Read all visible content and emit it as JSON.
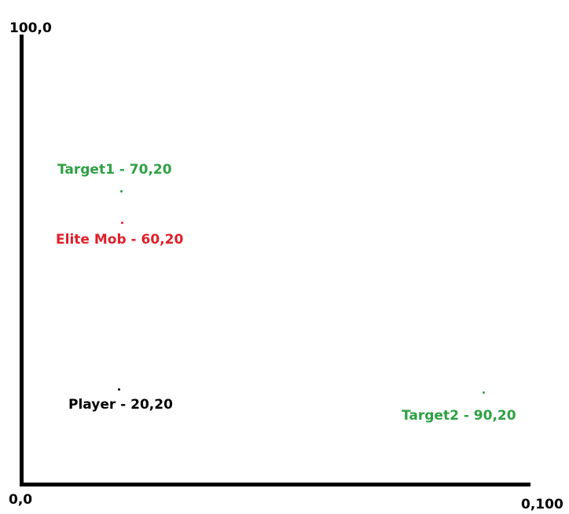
{
  "axes": {
    "top_left_label": "100,0",
    "origin_label": "0,0",
    "bottom_right_label": "0,100"
  },
  "markers": [
    {
      "label": "Target1 - 70,20",
      "color": "#2ea043"
    },
    {
      "label": "Elite Mob - 60,20",
      "color": "#e0202a"
    },
    {
      "label": "Player - 20,20",
      "color": "#000000"
    },
    {
      "label": "Target2 - 90,20",
      "color": "#2ea043"
    }
  ]
}
